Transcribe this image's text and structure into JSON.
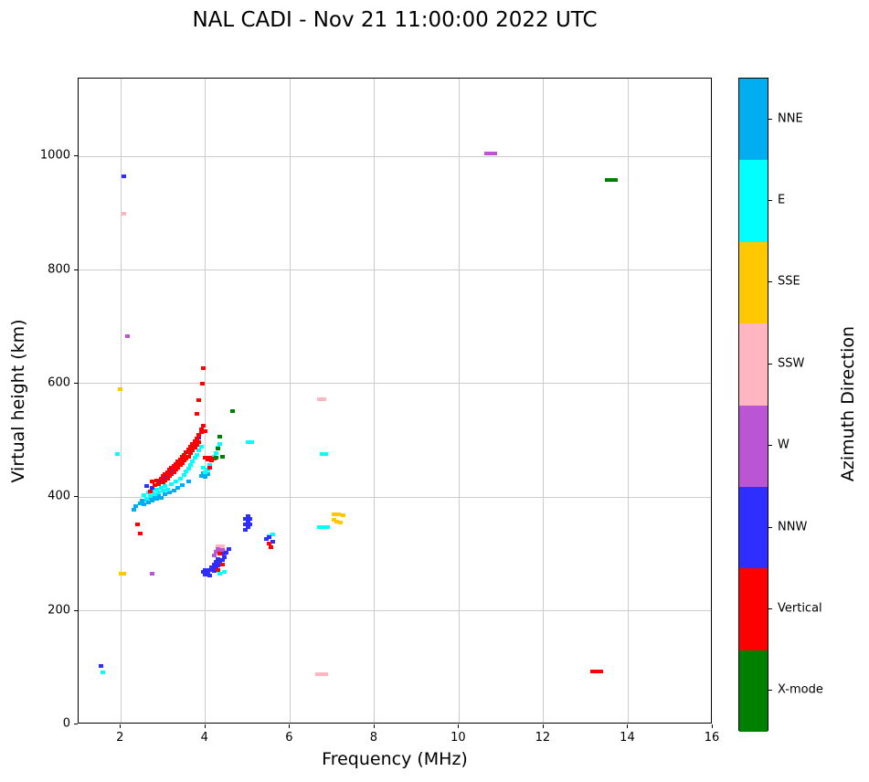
{
  "title": "NAL CADI - Nov 21 11:00:00 2022 UTC",
  "chart_data": {
    "type": "scatter",
    "title": "NAL CADI - Nov 21 11:00:00 2022 UTC",
    "xlabel": "Frequency (MHz)",
    "ylabel": "Virtual height (km)",
    "legend_title": "Azimuth Direction",
    "xlim": [
      1,
      16
    ],
    "ylim": [
      0,
      1137
    ],
    "xticks": [
      2,
      4,
      6,
      8,
      10,
      12,
      14,
      16
    ],
    "yticks": [
      0,
      200,
      400,
      600,
      800,
      1000
    ],
    "grid": true,
    "legend_position": "right-colorbar",
    "series": [
      {
        "name": "NNE",
        "color": "#00AEEF",
        "points": [
          [
            2.3,
            378
          ],
          [
            2.35,
            384
          ],
          [
            2.45,
            389
          ],
          [
            2.5,
            394
          ],
          [
            2.55,
            388
          ],
          [
            2.6,
            396
          ],
          [
            2.65,
            391
          ],
          [
            2.7,
            399
          ],
          [
            2.75,
            394
          ],
          [
            2.8,
            401
          ],
          [
            2.85,
            397
          ],
          [
            2.9,
            404
          ],
          [
            2.95,
            399
          ],
          [
            3.05,
            406
          ],
          [
            3.15,
            409
          ],
          [
            3.25,
            412
          ],
          [
            3.35,
            416
          ],
          [
            3.45,
            421
          ],
          [
            3.6,
            428
          ],
          [
            3.9,
            438
          ],
          [
            3.95,
            443
          ],
          [
            4.0,
            436
          ],
          [
            4.05,
            441
          ]
        ]
      },
      {
        "name": "E",
        "color": "#00FFFF",
        "points": [
          [
            1.58,
            92
          ],
          [
            1.91,
            476
          ],
          [
            2.55,
            404
          ],
          [
            2.6,
            398
          ],
          [
            2.65,
            408
          ],
          [
            2.7,
            402
          ],
          [
            2.75,
            411
          ],
          [
            2.8,
            405
          ],
          [
            2.85,
            414
          ],
          [
            2.9,
            408
          ],
          [
            2.95,
            417
          ],
          [
            3.0,
            411
          ],
          [
            3.05,
            420
          ],
          [
            3.1,
            414
          ],
          [
            3.2,
            423
          ],
          [
            3.3,
            428
          ],
          [
            3.4,
            433
          ],
          [
            3.5,
            439
          ],
          [
            3.55,
            445
          ],
          [
            3.6,
            451
          ],
          [
            3.65,
            457
          ],
          [
            3.7,
            463
          ],
          [
            3.75,
            469
          ],
          [
            3.8,
            475
          ],
          [
            3.85,
            482
          ],
          [
            3.9,
            489
          ],
          [
            3.95,
            452
          ],
          [
            4.0,
            444
          ],
          [
            4.05,
            448
          ],
          [
            4.1,
            456
          ],
          [
            4.15,
            464
          ],
          [
            4.2,
            471
          ],
          [
            4.25,
            478
          ],
          [
            4.3,
            487
          ],
          [
            4.35,
            494
          ],
          [
            4.35,
            265
          ],
          [
            4.45,
            268
          ],
          [
            5.0,
            497
          ],
          [
            5.1,
            497
          ],
          [
            5.5,
            332
          ],
          [
            5.6,
            334
          ],
          [
            6.7,
            347
          ],
          [
            6.8,
            347
          ],
          [
            6.9,
            347
          ],
          [
            6.75,
            476
          ],
          [
            6.85,
            476
          ]
        ]
      },
      {
        "name": "SSE",
        "color": "#FFC800",
        "points": [
          [
            1.99,
            590
          ],
          [
            2.0,
            265
          ],
          [
            2.08,
            265
          ],
          [
            7.05,
            361
          ],
          [
            7.05,
            370
          ],
          [
            7.15,
            370
          ],
          [
            7.25,
            368
          ],
          [
            7.1,
            357
          ],
          [
            7.2,
            356
          ]
        ]
      },
      {
        "name": "SSW",
        "color": "#FFB6C1",
        "points": [
          [
            2.08,
            899
          ],
          [
            4.3,
            313
          ],
          [
            4.35,
            308
          ],
          [
            4.4,
            313
          ],
          [
            4.45,
            305
          ],
          [
            6.65,
            88
          ],
          [
            6.75,
            88
          ],
          [
            6.85,
            88
          ],
          [
            6.7,
            572
          ],
          [
            6.8,
            572
          ]
        ]
      },
      {
        "name": "W",
        "color": "#BA55D3",
        "points": [
          [
            2.15,
            683
          ],
          [
            2.75,
            265
          ],
          [
            4.2,
            297
          ],
          [
            4.25,
            304
          ],
          [
            4.3,
            309
          ],
          [
            4.35,
            302
          ],
          [
            4.4,
            307
          ],
          [
            4.45,
            299
          ],
          [
            10.65,
            1005
          ],
          [
            10.75,
            1005
          ],
          [
            10.85,
            1005
          ]
        ]
      },
      {
        "name": "NNW",
        "color": "#2E2EFF",
        "points": [
          [
            1.54,
            103
          ],
          [
            2.08,
            965
          ],
          [
            2.6,
            420
          ],
          [
            2.75,
            416
          ],
          [
            2.9,
            428
          ],
          [
            3.05,
            435
          ],
          [
            3.2,
            447
          ],
          [
            3.35,
            458
          ],
          [
            3.6,
            480
          ],
          [
            3.85,
            505
          ],
          [
            3.95,
            268
          ],
          [
            4.0,
            263
          ],
          [
            4.0,
            272
          ],
          [
            4.05,
            267
          ],
          [
            4.1,
            262
          ],
          [
            4.1,
            271
          ],
          [
            4.15,
            276
          ],
          [
            4.2,
            270
          ],
          [
            4.2,
            281
          ],
          [
            4.25,
            275
          ],
          [
            4.25,
            286
          ],
          [
            4.3,
            280
          ],
          [
            4.3,
            291
          ],
          [
            4.35,
            285
          ],
          [
            4.4,
            290
          ],
          [
            4.4,
            300
          ],
          [
            4.45,
            295
          ],
          [
            4.5,
            302
          ],
          [
            4.55,
            308
          ],
          [
            4.95,
            342
          ],
          [
            4.95,
            352
          ],
          [
            4.95,
            362
          ],
          [
            5.0,
            347
          ],
          [
            5.0,
            357
          ],
          [
            5.0,
            367
          ],
          [
            5.05,
            352
          ],
          [
            5.05,
            362
          ],
          [
            5.45,
            326
          ],
          [
            5.5,
            330
          ],
          [
            5.6,
            322
          ]
        ]
      },
      {
        "name": "Vertical",
        "color": "#FF0000",
        "points": [
          [
            2.4,
            352
          ],
          [
            2.45,
            336
          ],
          [
            2.7,
            410
          ],
          [
            2.75,
            428
          ],
          [
            2.8,
            421
          ],
          [
            2.85,
            430
          ],
          [
            2.9,
            423
          ],
          [
            2.95,
            432
          ],
          [
            3.0,
            426
          ],
          [
            3.0,
            437
          ],
          [
            3.05,
            429
          ],
          [
            3.05,
            441
          ],
          [
            3.1,
            433
          ],
          [
            3.1,
            444
          ],
          [
            3.15,
            437
          ],
          [
            3.15,
            448
          ],
          [
            3.2,
            440
          ],
          [
            3.2,
            452
          ],
          [
            3.25,
            444
          ],
          [
            3.25,
            455
          ],
          [
            3.3,
            448
          ],
          [
            3.3,
            459
          ],
          [
            3.35,
            452
          ],
          [
            3.35,
            463
          ],
          [
            3.4,
            456
          ],
          [
            3.4,
            467
          ],
          [
            3.45,
            460
          ],
          [
            3.45,
            471
          ],
          [
            3.5,
            464
          ],
          [
            3.5,
            475
          ],
          [
            3.55,
            468
          ],
          [
            3.55,
            479
          ],
          [
            3.6,
            472
          ],
          [
            3.6,
            484
          ],
          [
            3.65,
            477
          ],
          [
            3.65,
            489
          ],
          [
            3.7,
            482
          ],
          [
            3.7,
            494
          ],
          [
            3.75,
            487
          ],
          [
            3.75,
            499
          ],
          [
            3.8,
            492
          ],
          [
            3.8,
            504
          ],
          [
            3.85,
            497
          ],
          [
            3.85,
            509
          ],
          [
            3.9,
            514
          ],
          [
            3.9,
            520
          ],
          [
            3.95,
            526
          ],
          [
            3.79,
            547
          ],
          [
            3.85,
            571
          ],
          [
            3.92,
            600
          ],
          [
            3.96,
            627
          ],
          [
            4.0,
            516
          ],
          [
            4.0,
            470
          ],
          [
            4.05,
            466
          ],
          [
            4.1,
            452
          ],
          [
            4.1,
            470
          ],
          [
            4.15,
            465
          ],
          [
            4.2,
            468
          ],
          [
            4.3,
            272
          ],
          [
            4.35,
            300
          ],
          [
            4.4,
            282
          ],
          [
            5.5,
            318
          ],
          [
            5.55,
            312
          ],
          [
            13.15,
            93
          ],
          [
            13.25,
            93
          ],
          [
            13.35,
            93
          ]
        ]
      },
      {
        "name": "X-mode",
        "color": "#008000",
        "points": [
          [
            4.25,
            470
          ],
          [
            4.3,
            486
          ],
          [
            4.35,
            507
          ],
          [
            4.4,
            472
          ],
          [
            4.65,
            552
          ],
          [
            13.5,
            958
          ],
          [
            13.6,
            958
          ],
          [
            13.7,
            958
          ]
        ]
      }
    ]
  }
}
